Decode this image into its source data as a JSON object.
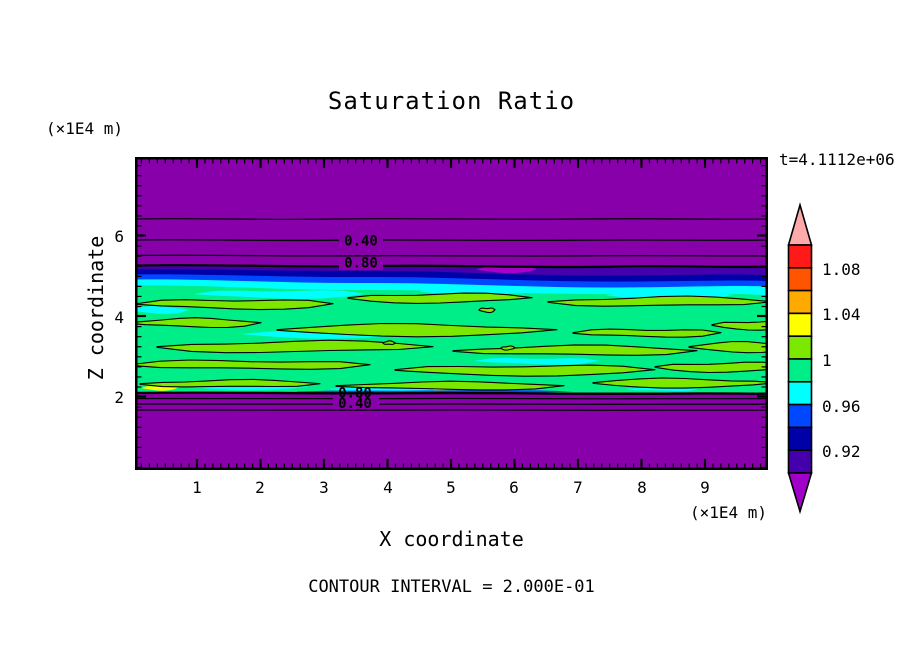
{
  "title": "Saturation Ratio",
  "time_label": "t=4.1112e+06",
  "z_axis": {
    "label": "Z coordinate",
    "unit": "(×1E4 m)",
    "tick_labels": [
      "6",
      "4",
      "2"
    ]
  },
  "x_axis": {
    "label": "X coordinate",
    "unit": "(×1E4 m)",
    "tick_labels": [
      "1",
      "2",
      "3",
      "4",
      "5",
      "6",
      "7",
      "8",
      "9"
    ]
  },
  "contour_note": "CONTOUR INTERVAL = 2.000E-01",
  "plot_labels": {
    "upper": [
      "0.40",
      "0.80"
    ],
    "lower": [
      "0.80",
      "0.40"
    ]
  },
  "colorbar": {
    "labels": [
      "1.08",
      "1.04",
      "1",
      "0.96",
      "0.92"
    ],
    "arrow_top": {
      "color": "#FFAAAA",
      "range": "> 1.10"
    },
    "arrow_bottom": {
      "color": "#A000C8",
      "range": "< 0.90"
    },
    "segments": [
      {
        "color": "#FF1A1A",
        "range": "1.08-1.10"
      },
      {
        "color": "#FF5500",
        "range": "1.06-1.08"
      },
      {
        "color": "#FFAA00",
        "range": "1.04-1.06"
      },
      {
        "color": "#FFFF00",
        "range": "1.02-1.04"
      },
      {
        "color": "#7CE800",
        "range": "1.00-1.02"
      },
      {
        "color": "#00EE88",
        "range": "0.98-1.00"
      },
      {
        "color": "#00FFFF",
        "range": "0.96-0.98"
      },
      {
        "color": "#0048FF",
        "range": "0.94-0.96"
      },
      {
        "color": "#0000A8",
        "range": "0.92-0.94"
      },
      {
        "color": "#4400AA",
        "range": "0.90-0.92"
      }
    ]
  },
  "chart_data": {
    "type": "heatmap",
    "title": "Saturation Ratio",
    "xlabel": "X coordinate",
    "ylabel": "Z coordinate",
    "x_unit": "(×1E4 m)",
    "z_unit": "(×1E4 m)",
    "time": "t=4.1112e+06",
    "xlim": [
      0,
      10
    ],
    "zlim": [
      0.2,
      7.9
    ],
    "x_ticks": [
      1,
      2,
      3,
      4,
      5,
      6,
      7,
      8,
      9
    ],
    "z_ticks": [
      2,
      4,
      6
    ],
    "contour_interval": 0.2,
    "contour_line_levels_visible": [
      0.2,
      0.4,
      0.6,
      0.8,
      1.0
    ],
    "colorbar_edges": [
      0.9,
      0.92,
      0.94,
      0.96,
      0.98,
      1.0,
      1.02,
      1.04,
      1.06,
      1.08,
      1.1
    ],
    "colorbar_labeled_values": [
      1.08,
      1.04,
      1,
      0.96,
      0.92
    ],
    "palette": {
      "background": "#8800AA",
      "indigo": "#4400AA",
      "navy": "#0000A8",
      "blue": "#0048FF",
      "cyan": "#00FFFF",
      "spring_green": "#00EE88",
      "chartreuse": "#7CE800",
      "yellow": "#FFFF00",
      "orange": "#FFAA00",
      "orange_red": "#FF5500",
      "red": "#FF1A1A",
      "pink": "#FFAAAA",
      "magenta": "#AA00CC",
      "under_range": "#A000C8"
    },
    "regions": [
      {
        "z_range": [
          5.3,
          7.9
        ],
        "value": "< 0.9",
        "description": "upper unsaturated zone, purple, contour lines 0.2-0.8 spread downward"
      },
      {
        "z_range": [
          4.6,
          5.3
        ],
        "value": "0.90-0.98",
        "description": "transition band: indigo, navy, blue, cyan layers; small magenta patch near x=5"
      },
      {
        "z_range": [
          2.1,
          4.6
        ],
        "value": "0.98-1.02",
        "description": "saturated band: spring green with chartreuse lenses outlined by 1.0 contours, cyan patches, small yellow streaks"
      },
      {
        "z_range": [
          0.2,
          2.1
        ],
        "value": "< 0.9",
        "description": "lower unsaturated zone, purple, contour lines 0.8-0.2 tightly clustered below band"
      }
    ]
  }
}
